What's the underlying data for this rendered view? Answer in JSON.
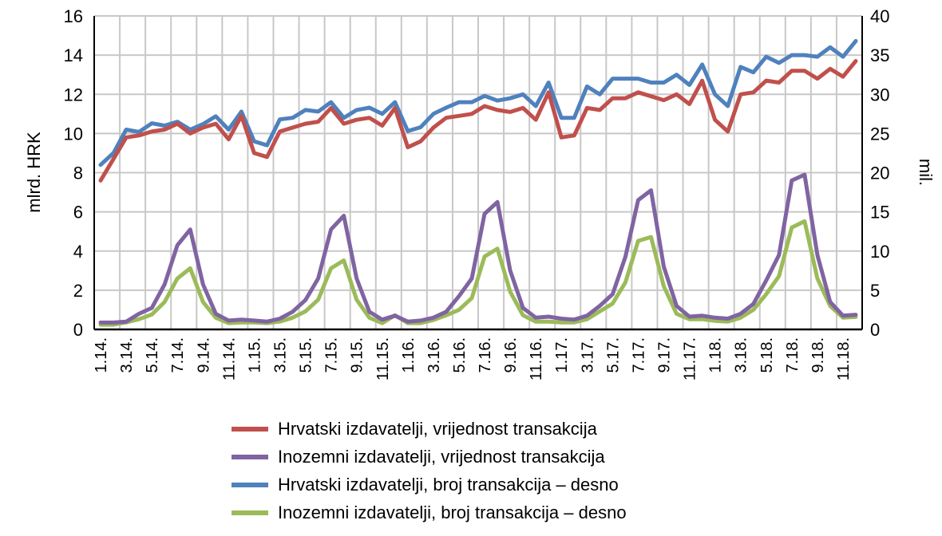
{
  "chart_data": {
    "type": "line",
    "title": "",
    "ylabel": "mlrd. HRK",
    "y2label": "mil.",
    "ylim": [
      0,
      16
    ],
    "y2lim": [
      0,
      40
    ],
    "yticks": [
      "0",
      "2",
      "4",
      "6",
      "8",
      "10",
      "12",
      "14",
      "16"
    ],
    "y2ticks": [
      "0",
      "5",
      "10",
      "15",
      "20",
      "25",
      "30",
      "35",
      "40"
    ],
    "grid": true,
    "legend_position": "bottom",
    "categories": [
      "1.14",
      "2.14",
      "3.14",
      "4.14",
      "5.14",
      "6.14",
      "7.14",
      "8.14",
      "9.14",
      "10.14",
      "11.14",
      "12.14",
      "1.15",
      "2.15",
      "3.15",
      "4.15",
      "5.15",
      "6.15",
      "7.15",
      "8.15",
      "9.15",
      "10.15",
      "11.15",
      "12.15",
      "1.16",
      "2.16",
      "3.16",
      "4.16",
      "5.16",
      "6.16",
      "7.16",
      "8.16",
      "9.16",
      "10.16",
      "11.16",
      "12.16",
      "1.17",
      "2.17",
      "3.17",
      "4.17",
      "5.17",
      "6.17",
      "7.17",
      "8.17",
      "9.17",
      "10.17",
      "11.17",
      "12.17",
      "1.18",
      "2.18",
      "3.18",
      "4.18",
      "5.18",
      "6.18",
      "7.18",
      "8.18",
      "9.18",
      "10.18",
      "11.18",
      "12.18"
    ],
    "tick_labels": [
      "1.14.",
      "3.14.",
      "5.14.",
      "7.14.",
      "9.14.",
      "11.14.",
      "1.15.",
      "3.15.",
      "5.15.",
      "7.15.",
      "9.15.",
      "11.15.",
      "1.16.",
      "3.16.",
      "5.16.",
      "7.16.",
      "9.16.",
      "11.16.",
      "1.17.",
      "3.17.",
      "5.17.",
      "7.17.",
      "9.17.",
      "11.17.",
      "1.18.",
      "3.18.",
      "5.18.",
      "7.18.",
      "9.18.",
      "11.18."
    ],
    "series": [
      {
        "name": "Hrvatski izdavatelji, vrijednost transakcija",
        "axis": "left",
        "color": "#c0504d",
        "values": [
          7.6,
          8.7,
          9.8,
          9.9,
          10.1,
          10.2,
          10.5,
          10.0,
          10.3,
          10.5,
          9.7,
          10.9,
          9.0,
          8.8,
          10.1,
          10.3,
          10.5,
          10.6,
          11.3,
          10.5,
          10.7,
          10.8,
          10.4,
          11.3,
          9.3,
          9.6,
          10.3,
          10.8,
          10.9,
          11.0,
          11.4,
          11.2,
          11.1,
          11.3,
          10.7,
          12.1,
          9.8,
          9.9,
          11.3,
          11.2,
          11.8,
          11.8,
          12.1,
          11.9,
          11.7,
          12.0,
          11.5,
          12.7,
          10.7,
          10.1,
          12.0,
          12.1,
          12.7,
          12.6,
          13.2,
          13.2,
          12.8,
          13.3,
          12.9,
          13.7
        ]
      },
      {
        "name": "Inozemni izdavatelji, vrijednost transakcija",
        "axis": "left",
        "color": "#8064a2",
        "values": [
          0.35,
          0.35,
          0.4,
          0.8,
          1.1,
          2.3,
          4.3,
          5.1,
          2.3,
          0.8,
          0.45,
          0.5,
          0.45,
          0.4,
          0.55,
          0.9,
          1.5,
          2.6,
          5.1,
          5.8,
          2.6,
          0.9,
          0.5,
          0.7,
          0.4,
          0.45,
          0.6,
          0.9,
          1.7,
          2.6,
          5.9,
          6.5,
          3.0,
          1.1,
          0.6,
          0.65,
          0.55,
          0.5,
          0.7,
          1.2,
          1.8,
          3.7,
          6.6,
          7.1,
          3.2,
          1.2,
          0.65,
          0.7,
          0.6,
          0.55,
          0.8,
          1.3,
          2.5,
          3.8,
          7.6,
          7.9,
          3.8,
          1.4,
          0.7,
          0.75
        ]
      },
      {
        "name": "Hrvatski izdavatelji, broj transakcija – desno",
        "axis": "right",
        "color": "#4f81bd",
        "values": [
          21,
          22.5,
          25.5,
          25.2,
          26.3,
          26,
          26.5,
          25.5,
          26.2,
          27.2,
          25.5,
          27.8,
          24,
          23.5,
          26.8,
          27,
          28,
          27.8,
          29,
          27,
          28,
          28.3,
          27.5,
          29,
          25.3,
          25.8,
          27.5,
          28.3,
          29,
          29,
          29.8,
          29.2,
          29.5,
          30,
          28.5,
          31.5,
          27,
          27,
          31,
          30,
          32,
          32,
          32,
          31.5,
          31.5,
          32.5,
          31.2,
          33.8,
          30,
          28.5,
          33.5,
          32.8,
          34.8,
          34,
          35,
          35,
          34.8,
          36,
          34.8,
          36.8
        ]
      },
      {
        "name": "Inozemni izdavatelji, broj transakcija – desno",
        "axis": "right",
        "color": "#9bbb59",
        "values": [
          0.6,
          0.6,
          0.9,
          1.3,
          1.9,
          3.5,
          6.5,
          7.8,
          3.5,
          1.5,
          0.8,
          0.9,
          0.9,
          0.8,
          1.0,
          1.5,
          2.3,
          3.8,
          7.8,
          8.8,
          3.8,
          1.5,
          0.8,
          1.8,
          0.8,
          0.8,
          1.2,
          1.8,
          2.5,
          4.0,
          9.3,
          10.3,
          4.8,
          1.8,
          1.0,
          1.0,
          0.9,
          0.9,
          1.3,
          2.3,
          3.3,
          6.0,
          11.3,
          11.8,
          5.5,
          2.0,
          1.3,
          1.3,
          1.1,
          1.0,
          1.5,
          2.5,
          4.5,
          6.8,
          13.0,
          13.8,
          6.5,
          3.0,
          1.5,
          1.6
        ]
      }
    ]
  }
}
